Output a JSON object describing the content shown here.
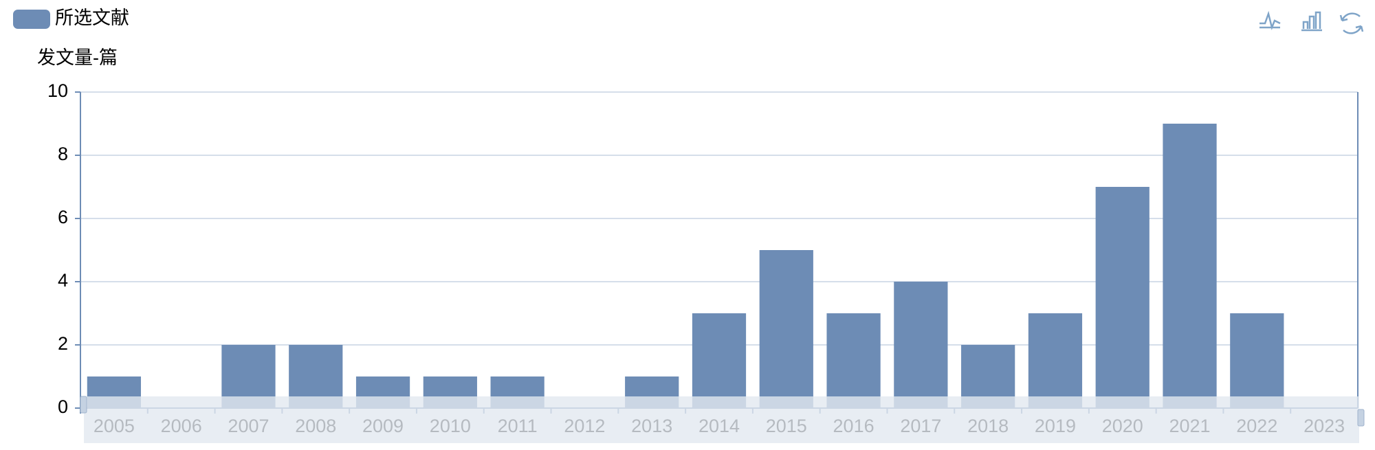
{
  "chart_data": {
    "type": "bar",
    "legend": "所选文献",
    "y_axis_label": "发文量-篇",
    "categories": [
      "2005",
      "2006",
      "2007",
      "2008",
      "2009",
      "2010",
      "2011",
      "2012",
      "2013",
      "2014",
      "2015",
      "2016",
      "2017",
      "2018",
      "2019",
      "2020",
      "2021",
      "2022",
      "2023"
    ],
    "values": [
      1,
      0,
      2,
      2,
      1,
      1,
      1,
      0,
      1,
      3,
      5,
      3,
      4,
      2,
      3,
      7,
      9,
      3,
      0
    ],
    "color": "#6d8cb5",
    "ylim": [
      0,
      10
    ],
    "yticks": [
      0,
      2,
      4,
      6,
      8,
      10
    ],
    "grid": true,
    "legend_position": "top-left"
  }
}
